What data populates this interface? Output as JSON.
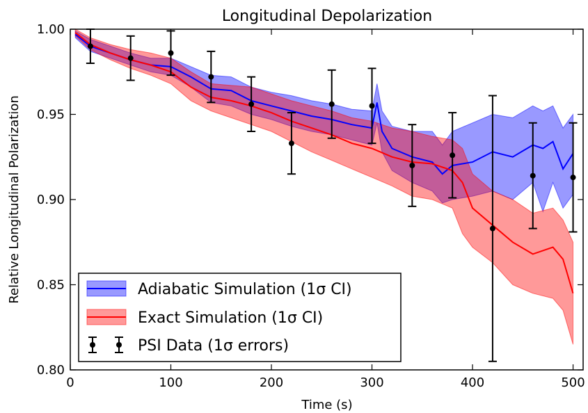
{
  "chart_data": {
    "type": "line",
    "title": "Longitudinal Depolarization",
    "xlabel": "Time (s)",
    "ylabel": "Relative Longitudinal Polarization",
    "xlim": [
      0,
      510
    ],
    "ylim": [
      0.8,
      1.0
    ],
    "xticks": [
      0,
      100,
      200,
      300,
      400,
      500
    ],
    "xtick_labels": [
      "0",
      "100",
      "200",
      "300",
      "400",
      "500"
    ],
    "yticks": [
      0.8,
      0.85,
      0.9,
      0.95,
      1.0
    ],
    "ytick_labels": [
      "0.80",
      "0.85",
      "0.90",
      "0.95",
      "1.00"
    ],
    "grid": false,
    "legend_position": "bottom-left",
    "series": [
      {
        "name": "Adiabatic Simulation (1σ CI)",
        "kind": "line_band",
        "color": "#0000ff",
        "fill": "#0000ff",
        "x": [
          5,
          20,
          40,
          60,
          80,
          100,
          120,
          140,
          160,
          180,
          200,
          220,
          240,
          260,
          280,
          300,
          305,
          310,
          320,
          340,
          360,
          370,
          380,
          400,
          420,
          440,
          460,
          470,
          480,
          490,
          500
        ],
        "mean": [
          0.997,
          0.99,
          0.986,
          0.982,
          0.979,
          0.978,
          0.972,
          0.965,
          0.964,
          0.958,
          0.955,
          0.952,
          0.949,
          0.947,
          0.944,
          0.942,
          0.957,
          0.94,
          0.93,
          0.925,
          0.922,
          0.915,
          0.92,
          0.922,
          0.928,
          0.925,
          0.932,
          0.93,
          0.934,
          0.918,
          0.927
        ],
        "lower": [
          0.995,
          0.987,
          0.983,
          0.979,
          0.975,
          0.973,
          0.966,
          0.957,
          0.955,
          0.95,
          0.947,
          0.943,
          0.94,
          0.938,
          0.935,
          0.932,
          0.945,
          0.928,
          0.917,
          0.91,
          0.905,
          0.898,
          0.9,
          0.902,
          0.905,
          0.9,
          0.91,
          0.893,
          0.91,
          0.895,
          0.903
        ],
        "upper": [
          0.999,
          0.994,
          0.99,
          0.986,
          0.983,
          0.983,
          0.978,
          0.973,
          0.972,
          0.966,
          0.963,
          0.961,
          0.958,
          0.956,
          0.953,
          0.952,
          0.968,
          0.952,
          0.943,
          0.94,
          0.94,
          0.932,
          0.94,
          0.945,
          0.95,
          0.948,
          0.955,
          0.952,
          0.955,
          0.942,
          0.95
        ]
      },
      {
        "name": "Exact Simulation (1σ CI)",
        "kind": "line_band",
        "color": "#ff0000",
        "fill": "#ff0000",
        "x": [
          5,
          20,
          40,
          60,
          80,
          100,
          120,
          140,
          160,
          180,
          200,
          220,
          240,
          260,
          280,
          300,
          320,
          340,
          360,
          380,
          390,
          400,
          420,
          440,
          460,
          480,
          490,
          500
        ],
        "mean": [
          0.998,
          0.991,
          0.986,
          0.982,
          0.979,
          0.975,
          0.966,
          0.96,
          0.958,
          0.955,
          0.951,
          0.946,
          0.942,
          0.938,
          0.933,
          0.93,
          0.925,
          0.922,
          0.921,
          0.917,
          0.91,
          0.895,
          0.885,
          0.875,
          0.868,
          0.872,
          0.865,
          0.845
        ],
        "lower": [
          0.996,
          0.988,
          0.982,
          0.977,
          0.973,
          0.968,
          0.958,
          0.952,
          0.948,
          0.944,
          0.94,
          0.934,
          0.928,
          0.923,
          0.918,
          0.913,
          0.908,
          0.902,
          0.9,
          0.895,
          0.88,
          0.872,
          0.863,
          0.85,
          0.845,
          0.842,
          0.835,
          0.815
        ],
        "upper": [
          1.0,
          0.995,
          0.991,
          0.988,
          0.986,
          0.983,
          0.975,
          0.968,
          0.967,
          0.966,
          0.962,
          0.958,
          0.955,
          0.952,
          0.948,
          0.946,
          0.942,
          0.94,
          0.937,
          0.935,
          0.93,
          0.915,
          0.905,
          0.9,
          0.892,
          0.895,
          0.888,
          0.875
        ]
      },
      {
        "name": "PSI Data (1σ errors)",
        "kind": "errorbar",
        "color": "#000000",
        "x": [
          20,
          60,
          100,
          140,
          180,
          220,
          260,
          300,
          340,
          380,
          420,
          460,
          500
        ],
        "y": [
          0.99,
          0.983,
          0.986,
          0.972,
          0.956,
          0.933,
          0.956,
          0.955,
          0.92,
          0.926,
          0.883,
          0.914,
          0.913
        ],
        "yerr": [
          0.01,
          0.013,
          0.013,
          0.015,
          0.016,
          0.018,
          0.02,
          0.022,
          0.024,
          0.025,
          0.078,
          0.031,
          0.032
        ]
      }
    ]
  }
}
